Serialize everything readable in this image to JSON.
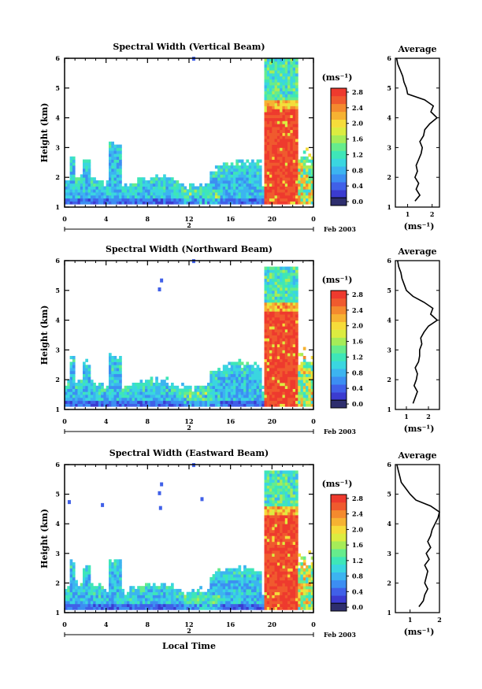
{
  "chart_data": [
    {
      "type": "heatmap",
      "title": "Spectral Width (Vertical Beam)",
      "xlabel": "",
      "ylabel": "Height (km)",
      "x_ticks": [
        "0",
        "4",
        "8",
        "12",
        "16",
        "20",
        "0"
      ],
      "x_lim": [
        0,
        24
      ],
      "y_ticks": [
        "1",
        "2",
        "3",
        "4",
        "5",
        "6"
      ],
      "y_lim": [
        1,
        6
      ],
      "date_row": {
        "day": "2",
        "month_year": "Feb 2003"
      },
      "colorbar": {
        "unit": "(ms⁻¹)",
        "ticks": [
          "0.0",
          "0.4",
          "0.8",
          "1.2",
          "1.6",
          "2.0",
          "2.4",
          "2.8"
        ],
        "range": [
          0,
          3.0
        ]
      },
      "profile": {
        "title": "Average",
        "xlabel": "(ms⁻¹)",
        "x_ticks": [
          "1",
          "2"
        ],
        "x_lim": [
          0.5,
          2.3
        ],
        "y_ticks": [
          "1",
          "2",
          "3",
          "4",
          "5",
          "6"
        ],
        "height_km": [
          1.2,
          1.4,
          1.6,
          1.8,
          2.0,
          2.2,
          2.4,
          2.6,
          2.8,
          3.0,
          3.2,
          3.4,
          3.6,
          3.8,
          4.0,
          4.2,
          4.4,
          4.6,
          4.8,
          5.0,
          5.2,
          5.4,
          5.6,
          5.8,
          6.0
        ],
        "width_ms": [
          1.3,
          1.5,
          1.35,
          1.45,
          1.3,
          1.4,
          1.35,
          1.45,
          1.55,
          1.6,
          1.5,
          1.65,
          1.7,
          1.9,
          2.2,
          1.95,
          2.05,
          1.7,
          1.0,
          0.95,
          0.85,
          0.8,
          0.7,
          0.6,
          0.55
        ]
      },
      "description_points": [
        {
          "x": 1,
          "y": 1.5,
          "v": 1.0
        },
        {
          "x": 13,
          "y": 1.3,
          "v": 2.2
        },
        {
          "x": 21,
          "y": 3.0,
          "v": 2.9
        }
      ]
    },
    {
      "type": "heatmap",
      "title": "Spectral Width (Northward Beam)",
      "xlabel": "",
      "ylabel": "Height (km)",
      "x_ticks": [
        "0",
        "4",
        "8",
        "12",
        "16",
        "20",
        "0"
      ],
      "x_lim": [
        0,
        24
      ],
      "y_ticks": [
        "1",
        "2",
        "3",
        "4",
        "5",
        "6"
      ],
      "y_lim": [
        1,
        6
      ],
      "date_row": {
        "day": "2",
        "month_year": "Feb 2003"
      },
      "colorbar": {
        "unit": "(ms⁻¹)",
        "ticks": [
          "0.0",
          "0.4",
          "0.8",
          "1.2",
          "1.6",
          "2.0",
          "2.4",
          "2.8"
        ],
        "range": [
          0,
          3.0
        ]
      },
      "profile": {
        "title": "Average",
        "xlabel": "(ms⁻¹)",
        "x_ticks": [
          "1",
          "2"
        ],
        "x_lim": [
          0.5,
          2.5
        ],
        "y_ticks": [
          "1",
          "2",
          "3",
          "4",
          "5",
          "6"
        ],
        "height_km": [
          1.2,
          1.4,
          1.6,
          1.8,
          2.0,
          2.2,
          2.4,
          2.6,
          2.8,
          3.0,
          3.2,
          3.4,
          3.6,
          3.8,
          4.0,
          4.2,
          4.4,
          4.6,
          4.8,
          5.0,
          5.2,
          5.4,
          5.6,
          5.8,
          6.0
        ],
        "width_ms": [
          1.3,
          1.4,
          1.5,
          1.35,
          1.45,
          1.5,
          1.4,
          1.55,
          1.6,
          1.6,
          1.7,
          1.65,
          1.8,
          2.0,
          2.4,
          2.1,
          2.2,
          1.8,
          1.3,
          1.0,
          0.9,
          0.8,
          0.75,
          0.65,
          0.6
        ]
      }
    },
    {
      "type": "heatmap",
      "title": "Spectral Width (Eastward Beam)",
      "xlabel": "Local Time",
      "ylabel": "Height (km)",
      "x_ticks": [
        "0",
        "4",
        "8",
        "12",
        "16",
        "20",
        "0"
      ],
      "x_lim": [
        0,
        24
      ],
      "y_ticks": [
        "1",
        "2",
        "3",
        "4",
        "5",
        "6"
      ],
      "y_lim": [
        1,
        6
      ],
      "date_row": {
        "day": "2",
        "month_year": "Feb 2003"
      },
      "colorbar": {
        "unit": "(ms⁻¹)",
        "ticks": [
          "0.0",
          "0.4",
          "0.8",
          "1.2",
          "1.6",
          "2.0",
          "2.4",
          "2.8"
        ],
        "range": [
          0,
          3.0
        ]
      },
      "profile": {
        "title": "Average",
        "xlabel": "(ms⁻¹)",
        "x_ticks": [
          "1",
          "2"
        ],
        "x_lim": [
          0.5,
          2.0
        ],
        "y_ticks": [
          "1",
          "2",
          "3",
          "4",
          "5",
          "6"
        ],
        "height_km": [
          1.2,
          1.4,
          1.6,
          1.8,
          2.0,
          2.2,
          2.4,
          2.6,
          2.8,
          3.0,
          3.2,
          3.4,
          3.6,
          3.8,
          4.0,
          4.2,
          4.4,
          4.6,
          4.8,
          5.0,
          5.2,
          5.4,
          5.6,
          5.8,
          6.0
        ],
        "width_ms": [
          1.3,
          1.45,
          1.5,
          1.6,
          1.5,
          1.55,
          1.6,
          1.5,
          1.65,
          1.55,
          1.7,
          1.6,
          1.7,
          1.75,
          1.85,
          1.95,
          2.0,
          1.7,
          1.2,
          1.0,
          0.85,
          0.7,
          0.65,
          0.6,
          0.55
        ]
      }
    }
  ],
  "colors": {
    "scale": [
      "#2e2e6e",
      "#3b3bd0",
      "#4060e8",
      "#3c8ef2",
      "#3cb4f0",
      "#3ad6e0",
      "#3ee6b8",
      "#66ec8c",
      "#a6ec58",
      "#dcec40",
      "#f6dc3a",
      "#f6b232",
      "#f48a2e",
      "#f05a2e",
      "#ee3a2e"
    ]
  }
}
